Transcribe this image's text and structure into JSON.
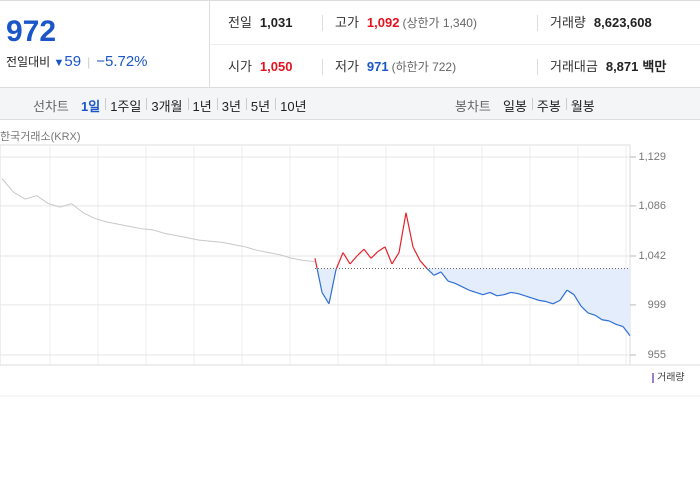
{
  "quote": {
    "price": "972",
    "change_label": "전일대비",
    "change": "59",
    "change_rate": "−5.72%",
    "stats": [
      [
        {
          "label": "전일",
          "value": "1,031"
        },
        {
          "label": "고가",
          "value": "1,092",
          "note": "(상한가 1,340)"
        },
        {
          "label": "거래량",
          "value": "8,623,608"
        }
      ],
      [
        {
          "label": "시가",
          "value": "1,050"
        },
        {
          "label": "저가",
          "value": "971",
          "note": "(하한가 722)"
        },
        {
          "label": "거래대금",
          "value": "8,871",
          "unit": "백만"
        }
      ]
    ]
  },
  "tabs": {
    "line_label": "선차트",
    "line": [
      "1일",
      "1주일",
      "3개월",
      "1년",
      "3년",
      "5년",
      "10년"
    ],
    "candle_label": "봉차트",
    "candle": [
      "일봉",
      "주봉",
      "월봉"
    ]
  },
  "chart_data": {
    "type": "line",
    "source": "한국거래소(KRX)",
    "ylim": [
      955,
      1129
    ],
    "yticks": [
      955,
      999,
      {
        "value": 1042,
        "label": "1,042"
      },
      {
        "value": 1086,
        "label": "1,086"
      },
      {
        "value": 1129,
        "label": "1,129"
      }
    ],
    "baseline": 1031,
    "series": [
      {
        "color": "#c8c8c8",
        "values": [
          1110,
          1098,
          1092,
          1095,
          1088,
          1085,
          1088,
          1080,
          1075,
          1072,
          1070,
          1068,
          1066,
          1065,
          1062,
          1060,
          1058,
          1056,
          1055,
          1054,
          1052,
          1050,
          1047,
          1045,
          1043,
          1040,
          1038,
          1037
        ]
      },
      {
        "color": "#2f6fd6",
        "up_color": "#e8212b",
        "fill": "#e3edfb",
        "values": [
          1040,
          1010,
          1000,
          1030,
          1045,
          1035,
          1042,
          1048,
          1040,
          1046,
          1050,
          1035,
          1045,
          1080,
          1050,
          1038,
          1031,
          1025,
          1028,
          1020,
          1018,
          1015,
          1012,
          1010,
          1008,
          1010,
          1007,
          1008,
          1010,
          1009,
          1007,
          1005,
          1003,
          1002,
          1000,
          1003,
          1012,
          1008,
          998,
          992,
          990,
          986,
          985,
          982,
          980,
          972
        ]
      }
    ],
    "volume_label": "거래량",
    "volume_color": "#9b7fc8"
  }
}
